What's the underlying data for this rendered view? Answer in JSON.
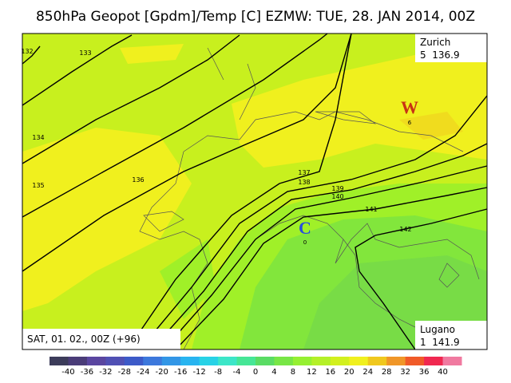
{
  "title": "850hPa Geopot [Gpdm]/Temp [C]  EZMW: TUE, 28. JAN 2014, 00Z",
  "contour_labels": [
    "132",
    "133",
    "134",
    "135",
    "136",
    "137",
    "138",
    "139",
    "140",
    "141",
    "142"
  ],
  "stations": [
    {
      "name": "Zurich",
      "value": "5  136.9"
    },
    {
      "name": "Lugano",
      "value": "1  141.9"
    }
  ],
  "valid_time": "SAT, 01. 02., 00Z (+96)",
  "centers": [
    {
      "label": "W",
      "value": "6"
    },
    {
      "label": "C",
      "value": "0"
    }
  ],
  "colorbar": {
    "ticks": [
      -40,
      -36,
      -32,
      -28,
      -24,
      -20,
      -16,
      -12,
      -8,
      -4,
      0,
      4,
      8,
      12,
      16,
      20,
      24,
      28,
      32,
      36,
      40
    ],
    "colors": [
      "#3c3c5a",
      "#4a3c78",
      "#5a46a0",
      "#5050b4",
      "#3c5ac8",
      "#3c78dc",
      "#3296e6",
      "#28b4f0",
      "#28d2e6",
      "#3ce6c8",
      "#46e696",
      "#5adc64",
      "#78e646",
      "#96f032",
      "#b4f028",
      "#d2f01e",
      "#f0f01e",
      "#f0c81e",
      "#f09628",
      "#f05a28",
      "#f02850",
      "#f07aa0"
    ]
  }
}
